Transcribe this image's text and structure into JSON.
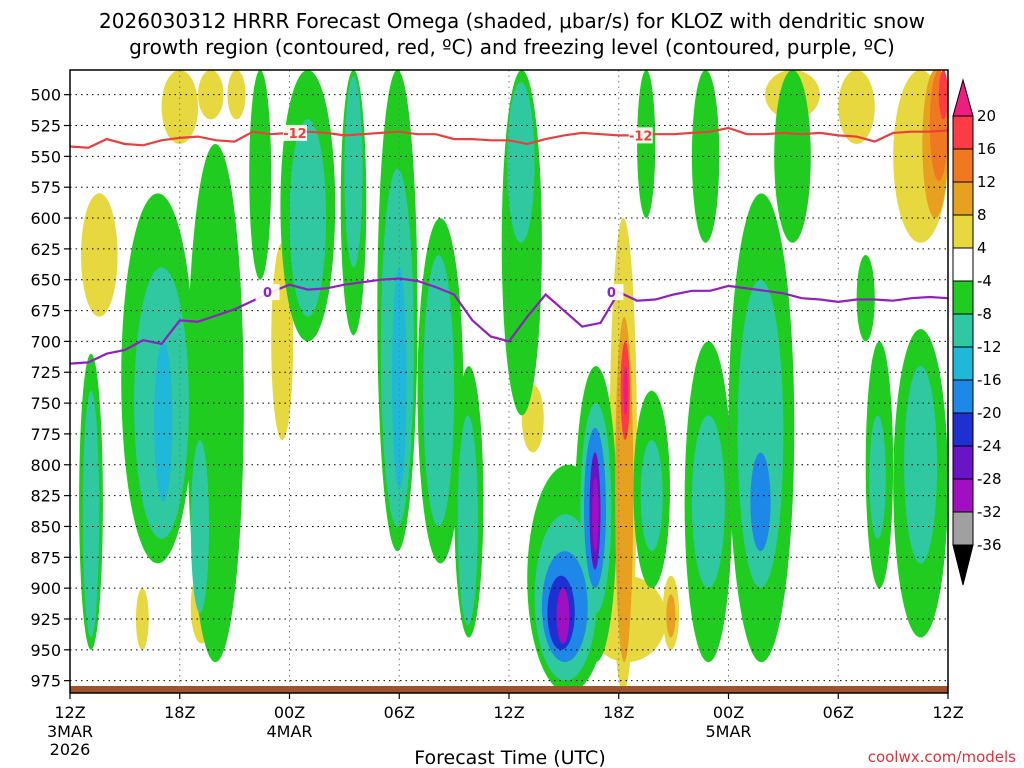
{
  "chart_data": {
    "type": "time-height contour",
    "title_line1": "2026030312 HRRR Forecast Omega (shaded, μbar/s) for KLOZ with dendritic snow",
    "title_line2": "growth region (contoured, red, ºC) and freezing level (contoured, purple, ºC)",
    "xlabel": "Forecast Time (UTC)",
    "credit": "coolwx.com/models",
    "x_hours": [
      0,
      48
    ],
    "y_range_hpa": [
      480,
      985
    ],
    "y_ticks": [
      "500",
      "525",
      "550",
      "575",
      "600",
      "625",
      "650",
      "675",
      "700",
      "725",
      "750",
      "775",
      "800",
      "825",
      "850",
      "875",
      "900",
      "925",
      "950",
      "975"
    ],
    "x_ticks": [
      {
        "hour": 0,
        "label": "12Z",
        "date": "3MAR",
        "year": "2026"
      },
      {
        "hour": 6,
        "label": "18Z"
      },
      {
        "hour": 12,
        "label": "00Z",
        "date": "4MAR"
      },
      {
        "hour": 18,
        "label": "06Z"
      },
      {
        "hour": 24,
        "label": "12Z"
      },
      {
        "hour": 30,
        "label": "18Z"
      },
      {
        "hour": 36,
        "label": "00Z",
        "date": "5MAR"
      },
      {
        "hour": 42,
        "label": "06Z"
      },
      {
        "hour": 48,
        "label": "12Z"
      }
    ],
    "colorbar": {
      "labels": [
        "20",
        "16",
        "12",
        "8",
        "4",
        "-4",
        "-8",
        "-12",
        "-16",
        "-20",
        "-24",
        "-28",
        "-32",
        "-36"
      ],
      "colors": [
        "#ee1e80",
        "#ff3c46",
        "#f07820",
        "#e8a020",
        "#e8d840",
        "#ffffff",
        "#20cc20",
        "#30c8a0",
        "#20b8d8",
        "#1e88e8",
        "#1e30d0",
        "#6a14c8",
        "#a010c0",
        "#a0a0a0",
        "#000000"
      ]
    },
    "series": [
      {
        "name": "-12 C isotherm (DGZ top)",
        "color": "#e84040",
        "label": "-12",
        "points": [
          [
            0,
            542
          ],
          [
            1,
            543
          ],
          [
            2,
            536
          ],
          [
            3,
            540
          ],
          [
            4,
            541
          ],
          [
            5,
            537
          ],
          [
            6,
            535
          ],
          [
            7,
            534
          ],
          [
            8,
            537
          ],
          [
            9,
            538
          ],
          [
            10,
            530
          ],
          [
            11,
            532
          ],
          [
            12,
            531
          ],
          [
            13,
            530
          ],
          [
            14,
            531
          ],
          [
            15,
            533
          ],
          [
            16,
            532
          ],
          [
            17,
            531
          ],
          [
            18,
            530
          ],
          [
            19,
            532
          ],
          [
            20,
            532
          ],
          [
            21,
            536
          ],
          [
            22,
            536
          ],
          [
            23,
            537
          ],
          [
            24,
            537
          ],
          [
            25,
            540
          ],
          [
            26,
            536
          ],
          [
            27,
            533
          ],
          [
            28,
            531
          ],
          [
            29,
            532
          ],
          [
            30,
            533
          ],
          [
            31,
            533
          ],
          [
            32,
            532
          ],
          [
            33,
            532
          ],
          [
            34,
            531
          ],
          [
            35,
            530
          ],
          [
            36,
            527
          ],
          [
            37,
            532
          ],
          [
            38,
            532
          ],
          [
            39,
            531
          ],
          [
            40,
            532
          ],
          [
            41,
            531
          ],
          [
            42,
            533
          ],
          [
            43,
            534
          ],
          [
            44,
            538
          ],
          [
            45,
            531
          ],
          [
            46,
            530
          ],
          [
            47,
            530
          ],
          [
            48,
            529
          ]
        ]
      },
      {
        "name": "0 C freezing level",
        "color": "#9020c0",
        "label": "0",
        "points": [
          [
            0,
            718
          ],
          [
            1,
            717
          ],
          [
            2,
            710
          ],
          [
            3,
            707
          ],
          [
            4,
            699
          ],
          [
            5,
            702
          ],
          [
            6,
            683
          ],
          [
            7,
            684
          ],
          [
            8,
            679
          ],
          [
            9,
            674
          ],
          [
            10,
            667
          ],
          [
            11,
            660
          ],
          [
            12,
            654
          ],
          [
            13,
            658
          ],
          [
            14,
            657
          ],
          [
            15,
            654
          ],
          [
            16,
            652
          ],
          [
            17,
            650
          ],
          [
            18,
            649
          ],
          [
            19,
            651
          ],
          [
            20,
            656
          ],
          [
            21,
            662
          ],
          [
            22,
            683
          ],
          [
            23,
            696
          ],
          [
            24,
            700
          ],
          [
            25,
            680
          ],
          [
            26,
            662
          ],
          [
            27,
            675
          ],
          [
            28,
            688
          ],
          [
            29,
            685
          ],
          [
            30,
            660
          ],
          [
            31,
            667
          ],
          [
            32,
            666
          ],
          [
            33,
            662
          ],
          [
            34,
            659
          ],
          [
            35,
            659
          ],
          [
            36,
            655
          ],
          [
            37,
            657
          ],
          [
            38,
            659
          ],
          [
            39,
            661
          ],
          [
            40,
            665
          ],
          [
            41,
            666
          ],
          [
            42,
            668
          ],
          [
            43,
            666
          ],
          [
            44,
            666
          ],
          [
            45,
            667
          ],
          [
            46,
            665
          ],
          [
            47,
            664
          ],
          [
            48,
            665
          ]
        ]
      }
    ],
    "omega_features": [
      {
        "value": -6,
        "t0": 14.8,
        "t1": 16.2,
        "p0": 480,
        "p1": 695
      },
      {
        "value": -10,
        "t0": 15.0,
        "t1": 16.0,
        "p0": 485,
        "p1": 640
      },
      {
        "value": -6,
        "t0": 16.8,
        "t1": 19.0,
        "p0": 480,
        "p1": 870
      },
      {
        "value": -10,
        "t0": 17.0,
        "t1": 18.8,
        "p0": 560,
        "p1": 850
      },
      {
        "value": -14,
        "t0": 17.6,
        "t1": 18.4,
        "p0": 640,
        "p1": 820
      },
      {
        "value": -6,
        "t0": 23.6,
        "t1": 25.8,
        "p0": 480,
        "p1": 760
      },
      {
        "value": -10,
        "t0": 23.9,
        "t1": 25.4,
        "p0": 490,
        "p1": 620
      },
      {
        "value": -6,
        "t0": 19.0,
        "t1": 21.5,
        "p0": 600,
        "p1": 880
      },
      {
        "value": -10,
        "t0": 19.3,
        "t1": 21.0,
        "p0": 630,
        "p1": 850
      },
      {
        "value": -6,
        "t0": 21.0,
        "t1": 22.6,
        "p0": 720,
        "p1": 940
      },
      {
        "value": -10,
        "t0": 21.2,
        "t1": 22.3,
        "p0": 760,
        "p1": 930
      },
      {
        "value": -6,
        "t0": 0.5,
        "t1": 1.8,
        "p0": 710,
        "p1": 950
      },
      {
        "value": -10,
        "t0": 0.7,
        "t1": 1.6,
        "p0": 740,
        "p1": 940
      },
      {
        "value": -6,
        "t0": 2.8,
        "t1": 6.8,
        "p0": 580,
        "p1": 880
      },
      {
        "value": -10,
        "t0": 3.5,
        "t1": 6.5,
        "p0": 640,
        "p1": 860
      },
      {
        "value": -14,
        "t0": 4.6,
        "t1": 5.6,
        "p0": 700,
        "p1": 830
      },
      {
        "value": -6,
        "t0": 6.4,
        "t1": 9.5,
        "p0": 540,
        "p1": 960
      },
      {
        "value": -10,
        "t0": 6.6,
        "t1": 7.6,
        "p0": 780,
        "p1": 920
      },
      {
        "value": -6,
        "t0": 9.8,
        "t1": 11.0,
        "p0": 480,
        "p1": 650
      },
      {
        "value": -6,
        "t0": 11.5,
        "t1": 14.5,
        "p0": 480,
        "p1": 700
      },
      {
        "value": -10,
        "t0": 12.0,
        "t1": 14.0,
        "p0": 520,
        "p1": 680
      },
      {
        "value": -6,
        "t0": 25.0,
        "t1": 29.5,
        "p0": 800,
        "p1": 985
      },
      {
        "value": -10,
        "t0": 25.4,
        "t1": 28.8,
        "p0": 840,
        "p1": 975
      },
      {
        "value": -16,
        "t0": 25.8,
        "t1": 28.3,
        "p0": 870,
        "p1": 960
      },
      {
        "value": -20,
        "t0": 26.1,
        "t1": 27.6,
        "p0": 890,
        "p1": 950
      },
      {
        "value": -28,
        "t0": 26.6,
        "t1": 27.3,
        "p0": 900,
        "p1": 945
      },
      {
        "value": -6,
        "t0": 27.6,
        "t1": 29.9,
        "p0": 720,
        "p1": 960
      },
      {
        "value": -10,
        "t0": 27.9,
        "t1": 29.6,
        "p0": 750,
        "p1": 920
      },
      {
        "value": -16,
        "t0": 28.1,
        "t1": 29.3,
        "p0": 770,
        "p1": 900
      },
      {
        "value": -24,
        "t0": 28.4,
        "t1": 29.0,
        "p0": 790,
        "p1": 885
      },
      {
        "value": -28,
        "t0": 28.55,
        "t1": 28.9,
        "p0": 810,
        "p1": 870
      },
      {
        "value": -6,
        "t0": 30.8,
        "t1": 32.8,
        "p0": 740,
        "p1": 900
      },
      {
        "value": -10,
        "t0": 31.2,
        "t1": 32.4,
        "p0": 780,
        "p1": 870
      },
      {
        "value": -6,
        "t0": 31.0,
        "t1": 32.0,
        "p0": 480,
        "p1": 600
      },
      {
        "value": -6,
        "t0": 34.0,
        "t1": 35.5,
        "p0": 480,
        "p1": 620
      },
      {
        "value": -6,
        "t0": 33.6,
        "t1": 36.2,
        "p0": 700,
        "p1": 960
      },
      {
        "value": -10,
        "t0": 34.0,
        "t1": 35.8,
        "p0": 760,
        "p1": 900
      },
      {
        "value": -6,
        "t0": 36.0,
        "t1": 39.6,
        "p0": 580,
        "p1": 960
      },
      {
        "value": -10,
        "t0": 36.5,
        "t1": 39.0,
        "p0": 650,
        "p1": 900
      },
      {
        "value": -16,
        "t0": 37.2,
        "t1": 38.3,
        "p0": 790,
        "p1": 870
      },
      {
        "value": -6,
        "t0": 38.5,
        "t1": 40.5,
        "p0": 480,
        "p1": 620
      },
      {
        "value": -6,
        "t0": 43.0,
        "t1": 44.0,
        "p0": 630,
        "p1": 700
      },
      {
        "value": -6,
        "t0": 43.5,
        "t1": 45.0,
        "p0": 700,
        "p1": 900
      },
      {
        "value": -6,
        "t0": 45.0,
        "t1": 48.0,
        "p0": 690,
        "p1": 940
      },
      {
        "value": -10,
        "t0": 45.6,
        "t1": 47.4,
        "p0": 720,
        "p1": 880
      },
      {
        "value": -10,
        "t0": 43.7,
        "t1": 44.6,
        "p0": 760,
        "p1": 860
      },
      {
        "value": 4,
        "t0": 5.0,
        "t1": 7.0,
        "p0": 480,
        "p1": 540
      },
      {
        "value": 4,
        "t0": 0.6,
        "t1": 2.6,
        "p0": 580,
        "p1": 680
      },
      {
        "value": 4,
        "t0": 7.0,
        "t1": 8.4,
        "p0": 480,
        "p1": 520
      },
      {
        "value": 4,
        "t0": 8.6,
        "t1": 9.6,
        "p0": 480,
        "p1": 520
      },
      {
        "value": 4,
        "t0": 11.0,
        "t1": 12.2,
        "p0": 620,
        "p1": 780
      },
      {
        "value": 4,
        "t0": 6.6,
        "t1": 7.8,
        "p0": 885,
        "p1": 945
      },
      {
        "value": 4,
        "t0": 3.6,
        "t1": 4.3,
        "p0": 900,
        "p1": 950
      },
      {
        "value": 4,
        "t0": 24.7,
        "t1": 25.9,
        "p0": 735,
        "p1": 790
      },
      {
        "value": 4,
        "t0": 28.3,
        "t1": 32.6,
        "p0": 890,
        "p1": 960
      },
      {
        "value": 4,
        "t0": 29.5,
        "t1": 31.0,
        "p0": 600,
        "p1": 985
      },
      {
        "value": 8,
        "t0": 29.8,
        "t1": 30.8,
        "p0": 680,
        "p1": 960
      },
      {
        "value": 16,
        "t0": 30.1,
        "t1": 30.6,
        "p0": 700,
        "p1": 780
      },
      {
        "value": 20,
        "t0": 30.25,
        "t1": 30.5,
        "p0": 720,
        "p1": 760
      },
      {
        "value": 4,
        "t0": 31.3,
        "t1": 32.3,
        "p0": 780,
        "p1": 850
      },
      {
        "value": 4,
        "t0": 32.4,
        "t1": 33.3,
        "p0": 890,
        "p1": 950
      },
      {
        "value": 8,
        "t0": 32.6,
        "t1": 33.1,
        "p0": 905,
        "p1": 940
      },
      {
        "value": 4,
        "t0": 38.0,
        "t1": 41.0,
        "p0": 480,
        "p1": 520
      },
      {
        "value": 4,
        "t0": 42.0,
        "t1": 44.0,
        "p0": 480,
        "p1": 540
      },
      {
        "value": 4,
        "t0": 45.0,
        "t1": 48.0,
        "p0": 480,
        "p1": 620
      },
      {
        "value": 8,
        "t0": 46.6,
        "t1": 48.0,
        "p0": 480,
        "p1": 600
      },
      {
        "value": 12,
        "t0": 47.0,
        "t1": 48.0,
        "p0": 480,
        "p1": 570
      },
      {
        "value": 16,
        "t0": 47.5,
        "t1": 48.0,
        "p0": 480,
        "p1": 520
      }
    ]
  }
}
